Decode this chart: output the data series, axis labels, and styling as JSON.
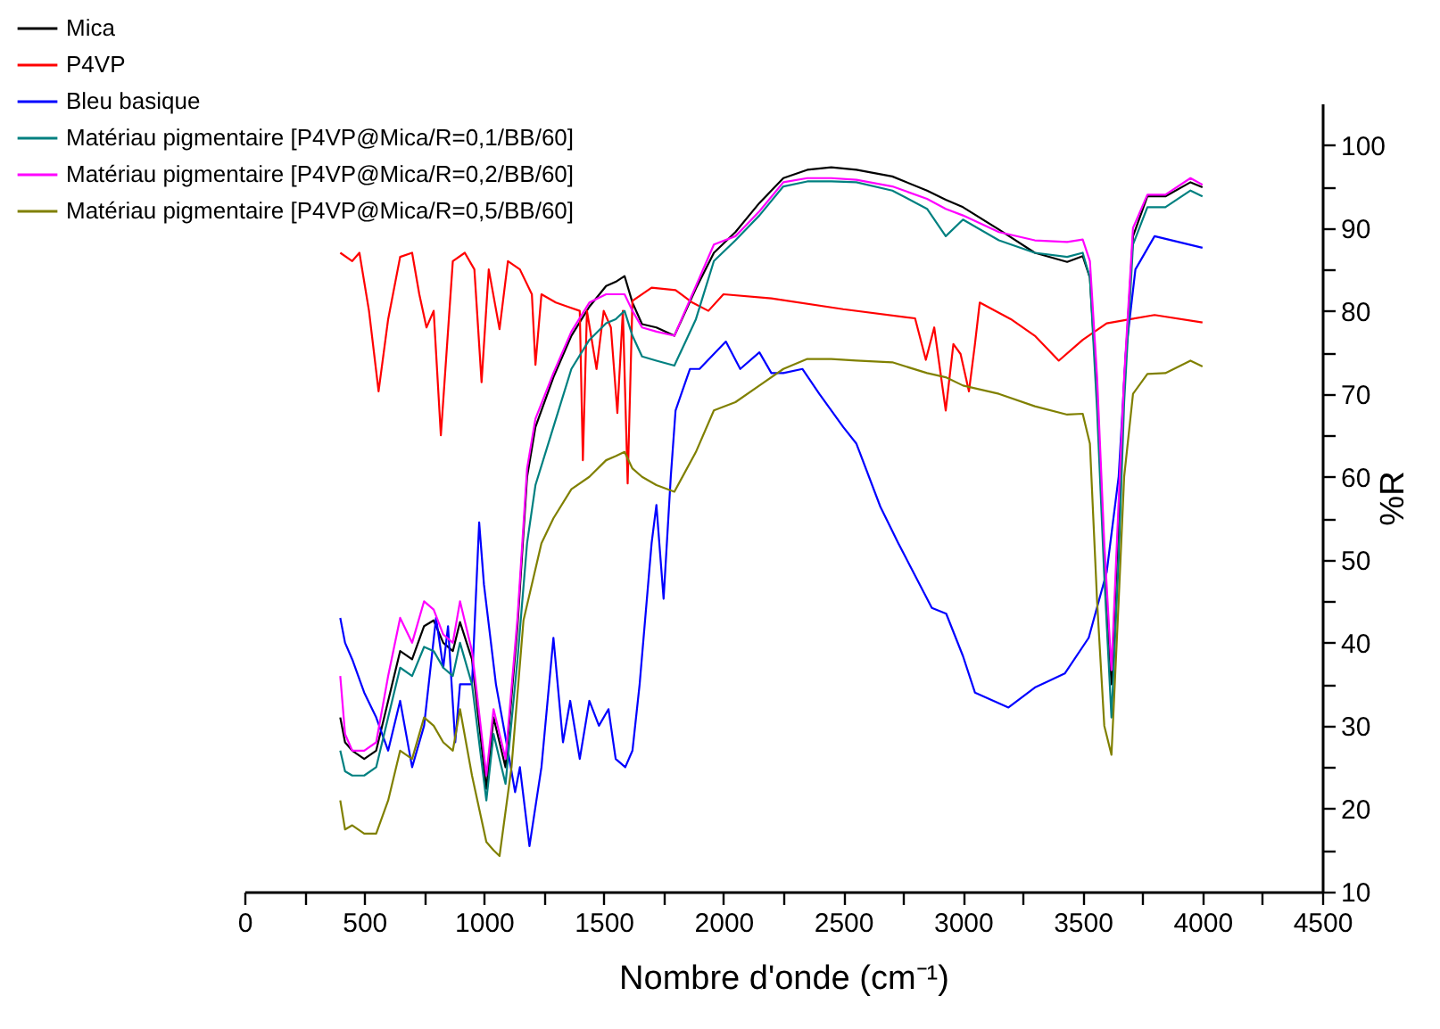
{
  "chart_data": {
    "type": "line",
    "xlabel": "Nombre d'onde (cm⁻¹)",
    "ylabel": "%R",
    "xlim": [
      0,
      4500
    ],
    "ylim": [
      10,
      105
    ],
    "xticks": [
      0,
      {
        "value": 250,
        "label": null
      },
      500,
      {
        "value": 750,
        "label": null
      },
      1000,
      {
        "value": 1250,
        "label": null
      },
      1500,
      {
        "value": 1750,
        "label": null
      },
      2000,
      {
        "value": 2250,
        "label": null
      },
      2500,
      {
        "value": 2750,
        "label": null
      },
      3000,
      {
        "value": 3250,
        "label": null
      },
      3500,
      {
        "value": 3750,
        "label": null
      },
      4000,
      {
        "value": 4250,
        "label": null
      },
      4500
    ],
    "yticks": [
      10,
      {
        "value": 15,
        "label": null
      },
      20,
      {
        "value": 25,
        "label": null
      },
      30,
      {
        "value": 35,
        "label": null
      },
      40,
      {
        "value": 45,
        "label": null
      },
      50,
      {
        "value": 55,
        "label": null
      },
      60,
      {
        "value": 65,
        "label": null
      },
      70,
      {
        "value": 75,
        "label": null
      },
      80,
      {
        "value": 85,
        "label": null
      },
      90,
      {
        "value": 95,
        "label": null
      },
      100
    ],
    "grid": false,
    "legend": "top left",
    "marker": "none",
    "line_style": "solid",
    "series": [
      {
        "name": "Mica",
        "color": "#000000",
        "x": [
          400,
          420,
          450,
          500,
          550,
          600,
          650,
          700,
          750,
          790,
          830,
          870,
          900,
          950,
          1010,
          1040,
          1090,
          1140,
          1180,
          1215,
          1290,
          1365,
          1440,
          1510,
          1550,
          1587,
          1620,
          1660,
          1720,
          1795,
          1885,
          1960,
          2050,
          2150,
          2250,
          2350,
          2450,
          2555,
          2705,
          2850,
          2928,
          3000,
          3150,
          3300,
          3435,
          3500,
          3530,
          3560,
          3590,
          3620,
          3650,
          3673,
          3710,
          3770,
          3845,
          3950,
          4000
        ],
        "values": [
          31,
          28,
          27,
          26,
          27,
          33,
          39,
          38,
          42,
          42.7,
          40,
          39,
          42.5,
          38,
          22.4,
          31,
          25,
          42,
          60,
          66,
          72,
          77,
          80.5,
          83,
          83.5,
          84.2,
          81,
          78.4,
          78,
          77,
          82.7,
          87,
          89.5,
          93,
          96,
          97,
          97.3,
          97,
          96.2,
          94.5,
          93.4,
          92.5,
          89.8,
          87,
          85.9,
          86.6,
          84,
          70,
          50,
          35,
          55,
          71.3,
          89,
          93.8,
          93.8,
          95.5,
          94.9
        ]
      },
      {
        "name": "P4VP",
        "color": "#ff0000",
        "x": [
          400,
          450,
          480,
          520,
          560,
          600,
          650,
          700,
          730,
          760,
          790,
          820,
          870,
          920,
          960,
          990,
          1020,
          1065,
          1100,
          1150,
          1200,
          1215,
          1240,
          1300,
          1350,
          1400,
          1413,
          1430,
          1470,
          1500,
          1530,
          1557,
          1580,
          1600,
          1620,
          1700,
          1800,
          1870,
          1937,
          2000,
          2200,
          2500,
          2800,
          2845,
          2880,
          2928,
          2960,
          2990,
          3025,
          3050,
          3070,
          3200,
          3300,
          3400,
          3500,
          3600,
          3700,
          3800,
          4000
        ],
        "values": [
          87,
          86,
          87,
          80,
          70.3,
          79,
          86.5,
          87,
          82,
          78,
          80,
          65,
          86,
          87,
          85,
          71.4,
          85,
          77.8,
          86,
          85,
          82,
          73.5,
          82,
          81,
          80.5,
          80,
          62,
          80,
          73,
          80,
          78,
          67.7,
          80,
          59.2,
          81.2,
          82.8,
          82.5,
          81,
          80,
          82,
          81.5,
          80.2,
          79.1,
          74.1,
          78,
          68,
          76,
          74.8,
          70.3,
          76,
          81,
          79,
          77,
          74,
          76.5,
          78.5,
          79,
          79.5,
          78.6
        ]
      },
      {
        "name": "Bleu basique",
        "color": "#0000ff",
        "x": [
          400,
          420,
          450,
          500,
          550,
          600,
          650,
          700,
          750,
          800,
          830,
          850,
          880,
          900,
          950,
          980,
          1000,
          1050,
          1100,
          1130,
          1150,
          1190,
          1240,
          1290,
          1330,
          1360,
          1400,
          1440,
          1480,
          1520,
          1550,
          1590,
          1620,
          1650,
          1700,
          1720,
          1750,
          1780,
          1800,
          1860,
          1900,
          1950,
          2010,
          2070,
          2150,
          2200,
          2250,
          2330,
          2400,
          2500,
          2555,
          2655,
          2730,
          2870,
          2930,
          3000,
          3050,
          3190,
          3300,
          3425,
          3525,
          3600,
          3650,
          3680,
          3720,
          3800,
          3900,
          4000
        ],
        "values": [
          43,
          40,
          38,
          34,
          31,
          27,
          33,
          25,
          30,
          43,
          37,
          42,
          28,
          35,
          35,
          54.5,
          47,
          35,
          27,
          22,
          25,
          15.5,
          25,
          40.6,
          28,
          33,
          26,
          33,
          30,
          32,
          26,
          25,
          27,
          35,
          52,
          56.6,
          45.3,
          60,
          68,
          73,
          73,
          74.5,
          76.3,
          73,
          75,
          72.5,
          72.5,
          73,
          70,
          66,
          64,
          56.4,
          52,
          44.2,
          43.5,
          38.4,
          34,
          32.2,
          34.6,
          36.3,
          40.6,
          48.5,
          60,
          75,
          85,
          89,
          88.3,
          87.6
        ]
      },
      {
        "name": "Matériau pigmentaire [P4VP@Mica/R=0,1/BB/60]",
        "color": "#008080",
        "x": [
          400,
          420,
          450,
          500,
          550,
          600,
          650,
          700,
          750,
          790,
          830,
          870,
          900,
          950,
          1010,
          1040,
          1090,
          1140,
          1180,
          1215,
          1290,
          1365,
          1440,
          1510,
          1550,
          1587,
          1620,
          1660,
          1720,
          1795,
          1885,
          1960,
          2050,
          2150,
          2250,
          2350,
          2450,
          2555,
          2705,
          2850,
          2928,
          3000,
          3150,
          3300,
          3435,
          3500,
          3530,
          3560,
          3590,
          3620,
          3650,
          3673,
          3710,
          3770,
          3845,
          3950,
          4000
        ],
        "values": [
          27,
          24.5,
          24,
          24,
          25,
          31,
          37,
          36,
          39.5,
          39,
          37,
          36,
          40,
          35,
          21,
          29,
          23,
          38,
          52,
          59,
          66,
          73,
          76.5,
          78.5,
          79,
          80,
          77,
          74.5,
          74,
          73.4,
          79,
          86,
          88.5,
          91.5,
          95,
          95.6,
          95.6,
          95.5,
          94.5,
          92.3,
          89,
          91,
          88.5,
          87,
          86.5,
          87,
          84,
          68,
          48,
          31,
          50,
          69,
          88,
          92.5,
          92.5,
          94.5,
          93.8
        ]
      },
      {
        "name": "Matériau pigmentaire [P4VP@Mica/R=0,2/BB/60]",
        "color": "#ff00ff",
        "x": [
          400,
          420,
          450,
          500,
          550,
          600,
          650,
          700,
          750,
          790,
          830,
          870,
          900,
          950,
          1010,
          1040,
          1090,
          1140,
          1180,
          1215,
          1290,
          1365,
          1440,
          1510,
          1550,
          1587,
          1620,
          1660,
          1720,
          1795,
          1885,
          1960,
          2050,
          2150,
          2250,
          2350,
          2450,
          2555,
          2705,
          2850,
          2928,
          3000,
          3150,
          3300,
          3435,
          3500,
          3530,
          3560,
          3590,
          3620,
          3650,
          3673,
          3710,
          3770,
          3845,
          3950,
          4000
        ],
        "values": [
          36,
          29,
          27,
          27,
          28,
          36,
          43,
          40,
          45,
          44,
          41,
          40,
          45,
          39,
          24,
          32,
          26,
          43,
          61,
          67,
          72.5,
          77.5,
          81,
          82,
          82,
          82,
          80,
          78,
          77.5,
          77,
          83,
          88,
          89,
          92,
          95.5,
          96,
          96,
          95.8,
          95,
          93.5,
          92.3,
          91.5,
          89.5,
          88.5,
          88.3,
          88.6,
          86,
          72,
          52,
          36.7,
          57,
          72,
          90,
          94,
          94,
          96,
          95.2
        ]
      },
      {
        "name": "Matériau pigmentaire [P4VP@Mica/R=0,5/BB/60]",
        "color": "#808000",
        "x": [
          400,
          420,
          450,
          500,
          550,
          600,
          650,
          700,
          750,
          790,
          830,
          870,
          900,
          950,
          1010,
          1040,
          1065,
          1115,
          1165,
          1240,
          1290,
          1365,
          1440,
          1510,
          1550,
          1587,
          1620,
          1660,
          1720,
          1795,
          1885,
          1960,
          2050,
          2150,
          2250,
          2350,
          2450,
          2555,
          2705,
          2850,
          2928,
          3000,
          3150,
          3300,
          3435,
          3500,
          3530,
          3560,
          3590,
          3620,
          3650,
          3673,
          3710,
          3770,
          3845,
          3950,
          4000
        ],
        "values": [
          21,
          17.5,
          18,
          17,
          17,
          21,
          27,
          26,
          31,
          30,
          28,
          27,
          32,
          24,
          16,
          15,
          14.3,
          25,
          42.7,
          52,
          55,
          58.5,
          60,
          62,
          62.5,
          63,
          61,
          60,
          59,
          58.2,
          63,
          68,
          69,
          71,
          73,
          74.2,
          74.2,
          74,
          73.8,
          72.5,
          72,
          71,
          70,
          68.5,
          67.5,
          67.6,
          64,
          45,
          30,
          26.5,
          45,
          60,
          70,
          72.4,
          72.5,
          74,
          73.3
        ]
      }
    ]
  }
}
